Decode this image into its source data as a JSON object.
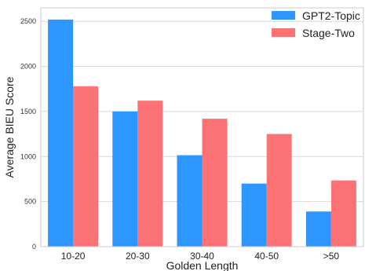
{
  "chart_data": {
    "type": "bar",
    "categories": [
      "10-20",
      "20-30",
      "30-40",
      "40-50",
      ">50"
    ],
    "series": [
      {
        "name": "GPT2-Topic",
        "values": [
          2520,
          1500,
          1015,
          700,
          390
        ],
        "color": "#2e96ff"
      },
      {
        "name": "Stage-Two",
        "values": [
          1780,
          1620,
          1420,
          1250,
          735
        ],
        "color": "#fd7274"
      }
    ],
    "title": "",
    "xlabel": "Golden Length",
    "ylabel": "Average BIEU Score",
    "ylim": [
      0,
      2650
    ],
    "yticks": [
      0,
      500,
      1000,
      1500,
      2000,
      2500
    ],
    "grid": "horizontal",
    "legend_position": "top-right"
  }
}
